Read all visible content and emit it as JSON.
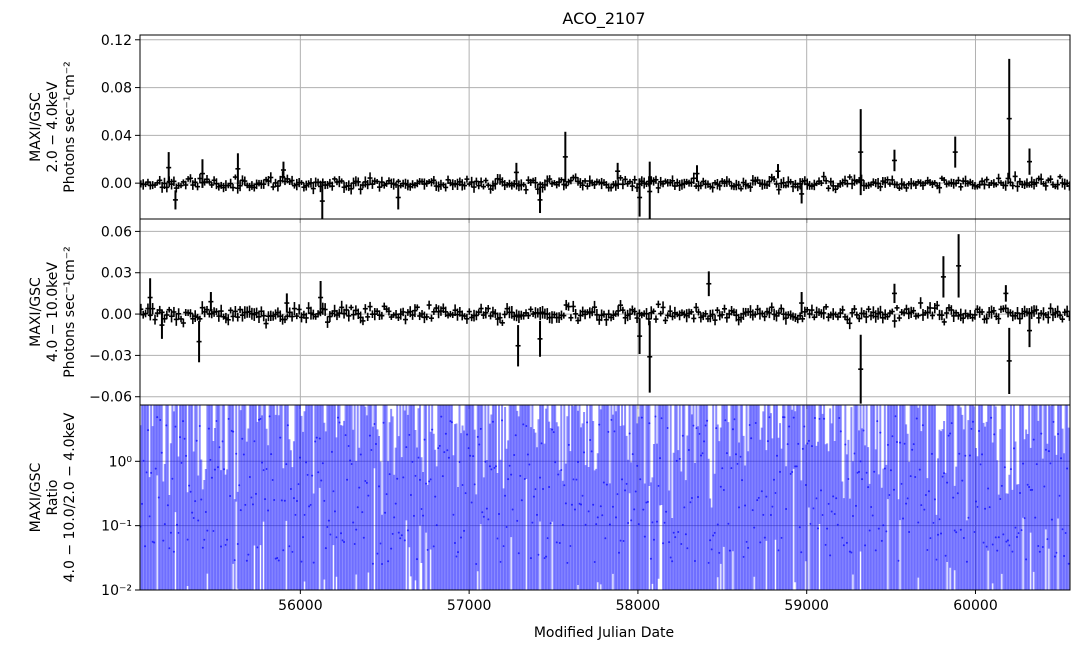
{
  "chart_data": {
    "type": "scatter",
    "title": "ACO_2107",
    "xlabel": "Modified Julian Date",
    "xlim": [
      55050,
      60560
    ],
    "x_ticks": [
      "56000",
      "57000",
      "58000",
      "59000",
      "60000"
    ],
    "panels": [
      {
        "ylabel_lines": [
          "MAXI/GSC",
          "2.0 − 4.0keV",
          "Photons sec⁻¹cm⁻²"
        ],
        "ylim": [
          -0.03,
          0.124
        ],
        "y_ticks": [
          "0.12",
          "0.08",
          "0.04",
          "0.00"
        ],
        "series_color": "#000000",
        "grid": true,
        "seed": 11,
        "noise_sigma": 0.0022,
        "typical_err": 0.004,
        "outliers": [
          {
            "x": 55220,
            "y": 0.013,
            "err": 0.013
          },
          {
            "x": 55260,
            "y": -0.014,
            "err": 0.008
          },
          {
            "x": 55420,
            "y": 0.008,
            "err": 0.012
          },
          {
            "x": 55630,
            "y": 0.012,
            "err": 0.013
          },
          {
            "x": 55900,
            "y": 0.011,
            "err": 0.007
          },
          {
            "x": 56130,
            "y": -0.015,
            "err": 0.015
          },
          {
            "x": 56580,
            "y": -0.012,
            "err": 0.01
          },
          {
            "x": 57280,
            "y": 0.009,
            "err": 0.008
          },
          {
            "x": 57420,
            "y": -0.014,
            "err": 0.011
          },
          {
            "x": 57570,
            "y": 0.022,
            "err": 0.021
          },
          {
            "x": 57880,
            "y": 0.01,
            "err": 0.007
          },
          {
            "x": 58010,
            "y": -0.012,
            "err": 0.016
          },
          {
            "x": 58070,
            "y": -0.007,
            "err": 0.025
          },
          {
            "x": 58350,
            "y": 0.008,
            "err": 0.007
          },
          {
            "x": 58830,
            "y": 0.01,
            "err": 0.006
          },
          {
            "x": 58970,
            "y": -0.009,
            "err": 0.008
          },
          {
            "x": 59320,
            "y": 0.026,
            "err": 0.036
          },
          {
            "x": 59520,
            "y": 0.019,
            "err": 0.009
          },
          {
            "x": 59880,
            "y": 0.026,
            "err": 0.013
          },
          {
            "x": 60200,
            "y": 0.054,
            "err": 0.05
          },
          {
            "x": 60320,
            "y": 0.018,
            "err": 0.011
          }
        ]
      },
      {
        "ylabel_lines": [
          "MAXI/GSC",
          "4.0 − 10.0keV",
          "Photons sec⁻¹cm⁻²"
        ],
        "ylim": [
          -0.066,
          0.069
        ],
        "y_ticks": [
          "0.06",
          "0.03",
          "0.00",
          "−0.03",
          "−0.06"
        ],
        "series_color": "#000000",
        "grid": true,
        "seed": 29,
        "noise_sigma": 0.0025,
        "typical_err": 0.004,
        "outliers": [
          {
            "x": 55110,
            "y": 0.012,
            "err": 0.014
          },
          {
            "x": 55180,
            "y": -0.008,
            "err": 0.01
          },
          {
            "x": 55400,
            "y": -0.02,
            "err": 0.015
          },
          {
            "x": 55470,
            "y": 0.009,
            "err": 0.007
          },
          {
            "x": 55920,
            "y": 0.008,
            "err": 0.007
          },
          {
            "x": 56120,
            "y": 0.012,
            "err": 0.012
          },
          {
            "x": 57290,
            "y": -0.023,
            "err": 0.015
          },
          {
            "x": 57420,
            "y": -0.018,
            "err": 0.013
          },
          {
            "x": 58010,
            "y": -0.016,
            "err": 0.013
          },
          {
            "x": 58070,
            "y": -0.031,
            "err": 0.026
          },
          {
            "x": 58420,
            "y": 0.022,
            "err": 0.009
          },
          {
            "x": 58970,
            "y": 0.008,
            "err": 0.008
          },
          {
            "x": 59320,
            "y": -0.04,
            "err": 0.025
          },
          {
            "x": 59520,
            "y": 0.015,
            "err": 0.007
          },
          {
            "x": 59810,
            "y": 0.027,
            "err": 0.015
          },
          {
            "x": 59900,
            "y": 0.035,
            "err": 0.023
          },
          {
            "x": 60180,
            "y": 0.015,
            "err": 0.006
          },
          {
            "x": 60200,
            "y": -0.034,
            "err": 0.024
          },
          {
            "x": 60320,
            "y": -0.012,
            "err": 0.012
          }
        ]
      },
      {
        "ylabel_lines": [
          "MAXI/GSC",
          "Ratio",
          "4.0 − 10.0/2.0 − 4.0keV"
        ],
        "scale": "log",
        "ylim": [
          0.01,
          7.5
        ],
        "y_ticks": [
          "10⁰",
          "10⁻¹",
          "10⁻²"
        ],
        "series_color": "#0000ff",
        "grid": true,
        "seed": 47
      }
    ]
  }
}
